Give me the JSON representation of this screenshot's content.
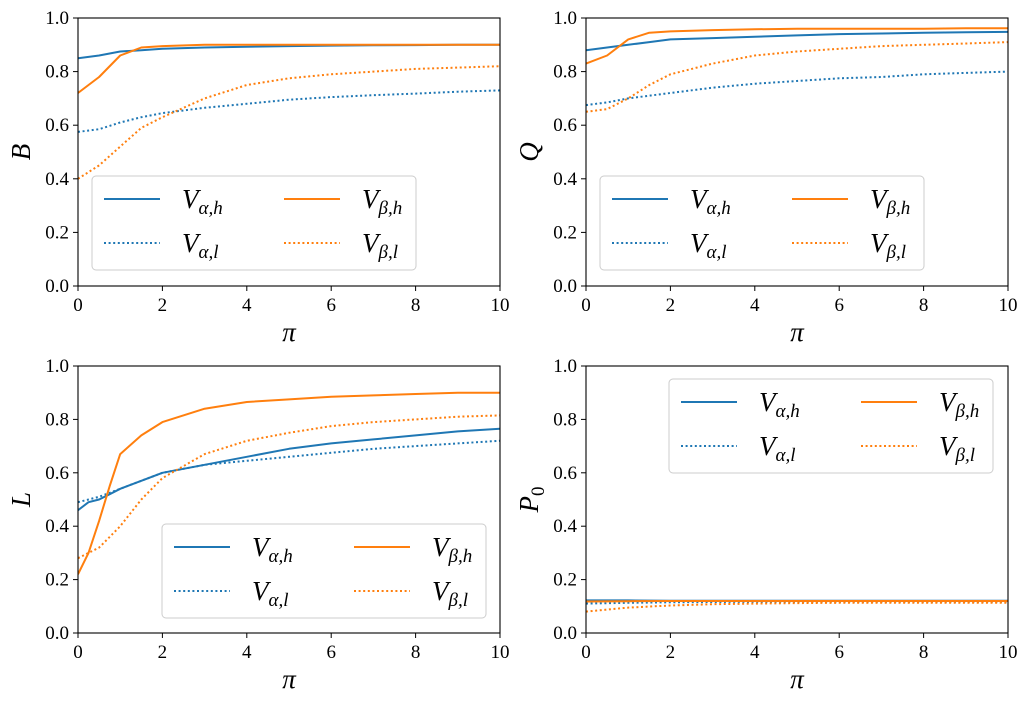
{
  "chart_data": [
    {
      "type": "line",
      "title": "",
      "xlabel": "π",
      "ylabel": "B",
      "xlim": [
        0,
        10
      ],
      "ylim": [
        0,
        1
      ],
      "xticks": [
        0,
        2,
        4,
        6,
        8,
        10
      ],
      "yticks": [
        0.0,
        0.2,
        0.4,
        0.6,
        0.8,
        1.0
      ],
      "xtick_labels": [
        "0",
        "2",
        "4",
        "6",
        "8",
        "10"
      ],
      "ytick_labels": [
        "0.0",
        "0.2",
        "0.4",
        "0.6",
        "0.8",
        "1.0"
      ],
      "legend": {
        "placement": "lower-right",
        "columns": 2
      },
      "x": [
        0,
        0.5,
        1,
        1.5,
        2,
        3,
        4,
        5,
        6,
        7,
        8,
        9,
        10
      ],
      "series": [
        {
          "name": "V",
          "sub": "α,h",
          "color": "#1f77b4",
          "style": "solid",
          "values": [
            0.85,
            0.86,
            0.875,
            0.88,
            0.885,
            0.89,
            0.893,
            0.895,
            0.897,
            0.898,
            0.899,
            0.9,
            0.9
          ]
        },
        {
          "name": "V",
          "sub": "α,l",
          "color": "#1f77b4",
          "style": "dotted",
          "values": [
            0.575,
            0.585,
            0.61,
            0.63,
            0.645,
            0.665,
            0.68,
            0.695,
            0.705,
            0.712,
            0.718,
            0.725,
            0.73
          ]
        },
        {
          "name": "V",
          "sub": "β,h",
          "color": "#ff7f0e",
          "style": "solid",
          "values": [
            0.72,
            0.78,
            0.86,
            0.89,
            0.895,
            0.9,
            0.9,
            0.9,
            0.9,
            0.9,
            0.9,
            0.9,
            0.9
          ]
        },
        {
          "name": "V",
          "sub": "β,l",
          "color": "#ff7f0e",
          "style": "dotted",
          "values": [
            0.4,
            0.45,
            0.52,
            0.59,
            0.63,
            0.7,
            0.75,
            0.775,
            0.79,
            0.8,
            0.81,
            0.815,
            0.82
          ]
        }
      ]
    },
    {
      "type": "line",
      "title": "",
      "xlabel": "π",
      "ylabel": "Q",
      "xlim": [
        0,
        10
      ],
      "ylim": [
        0,
        1
      ],
      "xticks": [
        0,
        2,
        4,
        6,
        8,
        10
      ],
      "yticks": [
        0.0,
        0.2,
        0.4,
        0.6,
        0.8,
        1.0
      ],
      "xtick_labels": [
        "0",
        "2",
        "4",
        "6",
        "8",
        "10"
      ],
      "ytick_labels": [
        "0.0",
        "0.2",
        "0.4",
        "0.6",
        "0.8",
        "1.0"
      ],
      "legend": {
        "placement": "lower-right",
        "columns": 2
      },
      "x": [
        0,
        0.5,
        1,
        1.5,
        2,
        3,
        4,
        5,
        6,
        7,
        8,
        9,
        10
      ],
      "series": [
        {
          "name": "V",
          "sub": "α,h",
          "color": "#1f77b4",
          "style": "solid",
          "values": [
            0.88,
            0.89,
            0.9,
            0.91,
            0.92,
            0.925,
            0.93,
            0.935,
            0.94,
            0.942,
            0.945,
            0.947,
            0.948
          ]
        },
        {
          "name": "V",
          "sub": "α,l",
          "color": "#1f77b4",
          "style": "dotted",
          "values": [
            0.675,
            0.685,
            0.7,
            0.71,
            0.72,
            0.74,
            0.755,
            0.765,
            0.775,
            0.78,
            0.79,
            0.795,
            0.8
          ]
        },
        {
          "name": "V",
          "sub": "β,h",
          "color": "#ff7f0e",
          "style": "solid",
          "values": [
            0.83,
            0.86,
            0.92,
            0.945,
            0.95,
            0.955,
            0.958,
            0.96,
            0.96,
            0.96,
            0.96,
            0.962,
            0.962
          ]
        },
        {
          "name": "V",
          "sub": "β,l",
          "color": "#ff7f0e",
          "style": "dotted",
          "values": [
            0.65,
            0.66,
            0.7,
            0.75,
            0.79,
            0.83,
            0.86,
            0.875,
            0.885,
            0.895,
            0.9,
            0.905,
            0.91
          ]
        }
      ]
    },
    {
      "type": "line",
      "title": "",
      "xlabel": "π",
      "ylabel": "L",
      "xlim": [
        0,
        10
      ],
      "ylim": [
        0,
        1
      ],
      "xticks": [
        0,
        2,
        4,
        6,
        8,
        10
      ],
      "yticks": [
        0.0,
        0.2,
        0.4,
        0.6,
        0.8,
        1.0
      ],
      "xtick_labels": [
        "0",
        "2",
        "4",
        "6",
        "8",
        "10"
      ],
      "ytick_labels": [
        "0.0",
        "0.2",
        "0.4",
        "0.6",
        "0.8",
        "1.0"
      ],
      "legend": {
        "placement": "lower-right",
        "columns": 2
      },
      "x": [
        0,
        0.25,
        0.5,
        0.75,
        1,
        1.5,
        2,
        3,
        4,
        5,
        6,
        7,
        8,
        9,
        10
      ],
      "series": [
        {
          "name": "V",
          "sub": "α,h",
          "color": "#1f77b4",
          "style": "solid",
          "values": [
            0.46,
            0.49,
            0.5,
            0.52,
            0.54,
            0.57,
            0.6,
            0.63,
            0.66,
            0.69,
            0.71,
            0.725,
            0.74,
            0.755,
            0.765
          ]
        },
        {
          "name": "V",
          "sub": "α,l",
          "color": "#1f77b4",
          "style": "dotted",
          "values": [
            0.49,
            0.5,
            0.51,
            0.525,
            0.54,
            0.57,
            0.6,
            0.63,
            0.645,
            0.66,
            0.675,
            0.69,
            0.7,
            0.71,
            0.72
          ]
        },
        {
          "name": "V",
          "sub": "β,h",
          "color": "#ff7f0e",
          "style": "solid",
          "values": [
            0.22,
            0.3,
            0.42,
            0.55,
            0.67,
            0.74,
            0.79,
            0.84,
            0.865,
            0.875,
            0.885,
            0.89,
            0.895,
            0.9,
            0.9
          ]
        },
        {
          "name": "V",
          "sub": "β,l",
          "color": "#ff7f0e",
          "style": "dotted",
          "values": [
            0.28,
            0.3,
            0.32,
            0.36,
            0.4,
            0.5,
            0.58,
            0.67,
            0.72,
            0.75,
            0.775,
            0.79,
            0.8,
            0.81,
            0.815
          ]
        }
      ]
    },
    {
      "type": "line",
      "title": "",
      "xlabel": "π",
      "ylabel": "P",
      "ylabel_sub": "0",
      "xlim": [
        0,
        10
      ],
      "ylim": [
        0,
        1
      ],
      "xticks": [
        0,
        2,
        4,
        6,
        8,
        10
      ],
      "yticks": [
        0.0,
        0.2,
        0.4,
        0.6,
        0.8,
        1.0
      ],
      "xtick_labels": [
        "0",
        "2",
        "4",
        "6",
        "8",
        "10"
      ],
      "ytick_labels": [
        "0.0",
        "0.2",
        "0.4",
        "0.6",
        "0.8",
        "1.0"
      ],
      "legend": {
        "placement": "upper-right",
        "columns": 2
      },
      "x": [
        0,
        1,
        2,
        3,
        4,
        5,
        6,
        7,
        8,
        9,
        10
      ],
      "series": [
        {
          "name": "V",
          "sub": "α,h",
          "color": "#1f77b4",
          "style": "solid",
          "values": [
            0.122,
            0.122,
            0.121,
            0.121,
            0.121,
            0.121,
            0.121,
            0.121,
            0.121,
            0.121,
            0.121
          ]
        },
        {
          "name": "V",
          "sub": "α,l",
          "color": "#1f77b4",
          "style": "dotted",
          "values": [
            0.11,
            0.113,
            0.115,
            0.116,
            0.117,
            0.117,
            0.117,
            0.117,
            0.117,
            0.117,
            0.117
          ]
        },
        {
          "name": "V",
          "sub": "β,h",
          "color": "#ff7f0e",
          "style": "solid",
          "values": [
            0.118,
            0.119,
            0.12,
            0.12,
            0.12,
            0.12,
            0.12,
            0.12,
            0.12,
            0.12,
            0.12
          ]
        },
        {
          "name": "V",
          "sub": "β,l",
          "color": "#ff7f0e",
          "style": "dotted",
          "values": [
            0.08,
            0.095,
            0.103,
            0.108,
            0.11,
            0.112,
            0.113,
            0.113,
            0.113,
            0.113,
            0.113
          ]
        }
      ]
    }
  ]
}
